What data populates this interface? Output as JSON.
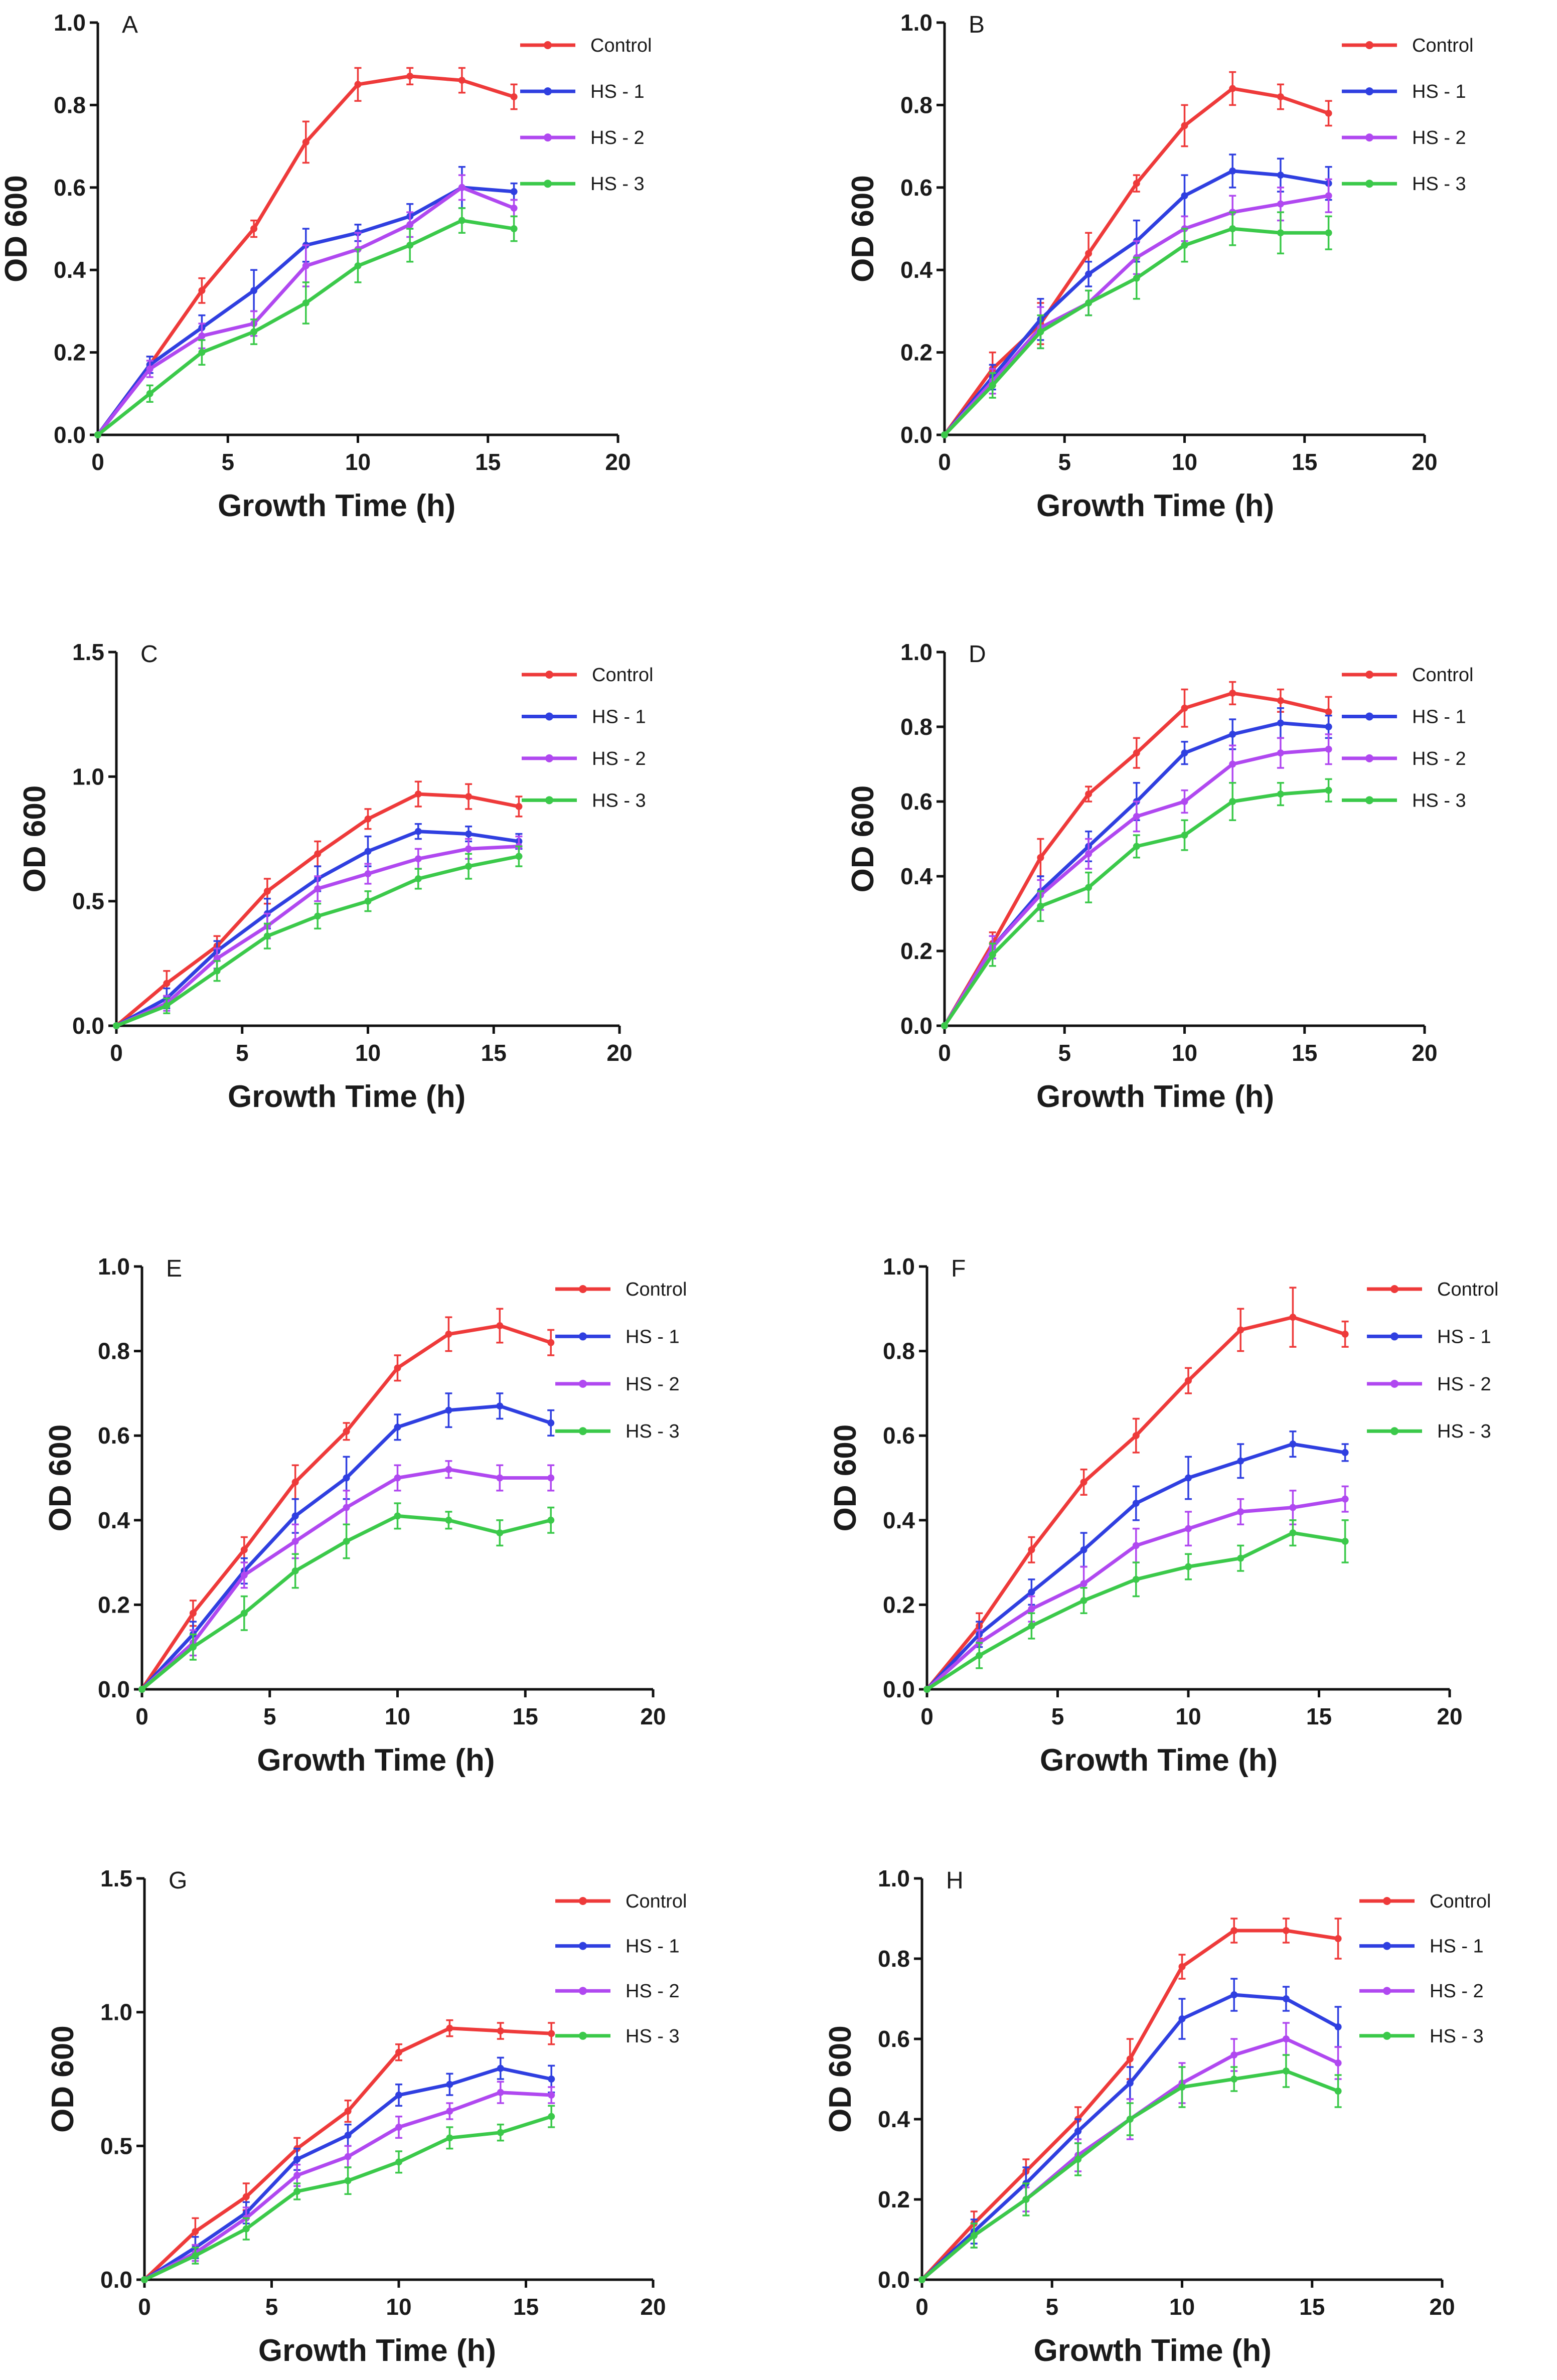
{
  "colors": {
    "Control": "#ee3a3a",
    "HS - 1": "#2f3fe0",
    "HS - 2": "#b048f0",
    "HS - 3": "#3bc94a"
  },
  "chart_data": [
    {
      "panel": "A",
      "type": "line",
      "xlabel": "Growth Time (h)",
      "ylabel": "OD 600",
      "xlim": [
        0,
        20
      ],
      "ylim": [
        0,
        1.0
      ],
      "xticks": [
        "0",
        "5",
        "10",
        "15",
        "20"
      ],
      "yticks": [
        "0.0",
        "0.2",
        "0.4",
        "0.6",
        "0.8",
        "1.0"
      ],
      "x": [
        0,
        2,
        4,
        6,
        8,
        10,
        12,
        14,
        16
      ],
      "series": [
        {
          "name": "Control",
          "values": [
            0,
            0.17,
            0.35,
            0.5,
            0.71,
            0.85,
            0.87,
            0.86,
            0.82
          ],
          "err": [
            0,
            0.02,
            0.03,
            0.02,
            0.05,
            0.04,
            0.02,
            0.03,
            0.03
          ]
        },
        {
          "name": "HS - 1",
          "values": [
            0,
            0.17,
            0.26,
            0.35,
            0.46,
            0.49,
            0.53,
            0.6,
            0.59
          ],
          "err": [
            0,
            0.02,
            0.03,
            0.05,
            0.04,
            0.02,
            0.03,
            0.05,
            0.02
          ]
        },
        {
          "name": "HS - 2",
          "values": [
            0,
            0.16,
            0.24,
            0.27,
            0.41,
            0.45,
            0.51,
            0.6,
            0.55
          ],
          "err": [
            0,
            0.02,
            0.03,
            0.03,
            0.05,
            0.04,
            0.03,
            0.03,
            0.02
          ]
        },
        {
          "name": "HS - 3",
          "values": [
            0,
            0.1,
            0.2,
            0.25,
            0.32,
            0.41,
            0.46,
            0.52,
            0.5
          ],
          "err": [
            0,
            0.02,
            0.03,
            0.03,
            0.05,
            0.04,
            0.04,
            0.03,
            0.03
          ]
        }
      ]
    },
    {
      "panel": "B",
      "type": "line",
      "xlabel": "Growth Time (h)",
      "ylabel": "OD 600",
      "xlim": [
        0,
        20
      ],
      "ylim": [
        0,
        1.0
      ],
      "xticks": [
        "0",
        "5",
        "10",
        "15",
        "20"
      ],
      "yticks": [
        "0.0",
        "0.2",
        "0.4",
        "0.6",
        "0.8",
        "1.0"
      ],
      "x": [
        0,
        2,
        4,
        6,
        8,
        10,
        12,
        14,
        16
      ],
      "series": [
        {
          "name": "Control",
          "values": [
            0,
            0.16,
            0.27,
            0.44,
            0.61,
            0.75,
            0.84,
            0.82,
            0.78
          ],
          "err": [
            0,
            0.04,
            0.05,
            0.05,
            0.02,
            0.05,
            0.04,
            0.03,
            0.03
          ]
        },
        {
          "name": "HS - 1",
          "values": [
            0,
            0.14,
            0.28,
            0.39,
            0.47,
            0.58,
            0.64,
            0.63,
            0.61
          ],
          "err": [
            0,
            0.03,
            0.05,
            0.03,
            0.05,
            0.05,
            0.04,
            0.04,
            0.04
          ]
        },
        {
          "name": "HS - 2",
          "values": [
            0,
            0.13,
            0.26,
            0.32,
            0.43,
            0.5,
            0.54,
            0.56,
            0.58
          ],
          "err": [
            0,
            0.03,
            0.05,
            0.03,
            0.04,
            0.03,
            0.04,
            0.04,
            0.04
          ]
        },
        {
          "name": "HS - 3",
          "values": [
            0,
            0.12,
            0.25,
            0.32,
            0.38,
            0.46,
            0.5,
            0.49,
            0.49
          ],
          "err": [
            0,
            0.03,
            0.04,
            0.03,
            0.05,
            0.04,
            0.04,
            0.05,
            0.04
          ]
        }
      ]
    },
    {
      "panel": "C",
      "type": "line",
      "xlabel": "Growth Time (h)",
      "ylabel": "OD 600",
      "xlim": [
        0,
        20
      ],
      "ylim": [
        0,
        1.5
      ],
      "xticks": [
        "0",
        "5",
        "10",
        "15",
        "20"
      ],
      "yticks": [
        "0.0",
        "0.5",
        "1.0",
        "1.5"
      ],
      "x": [
        0,
        2,
        4,
        6,
        8,
        10,
        12,
        14,
        16
      ],
      "series": [
        {
          "name": "Control",
          "values": [
            0,
            0.17,
            0.32,
            0.54,
            0.69,
            0.83,
            0.93,
            0.92,
            0.88
          ],
          "err": [
            0,
            0.05,
            0.04,
            0.05,
            0.05,
            0.04,
            0.05,
            0.05,
            0.04
          ]
        },
        {
          "name": "HS - 1",
          "values": [
            0,
            0.11,
            0.3,
            0.45,
            0.59,
            0.7,
            0.78,
            0.77,
            0.74
          ],
          "err": [
            0,
            0.04,
            0.04,
            0.06,
            0.05,
            0.06,
            0.03,
            0.03,
            0.03
          ]
        },
        {
          "name": "HS - 2",
          "values": [
            0,
            0.09,
            0.27,
            0.4,
            0.55,
            0.61,
            0.67,
            0.71,
            0.72
          ],
          "err": [
            0,
            0.03,
            0.04,
            0.05,
            0.05,
            0.04,
            0.04,
            0.04,
            0.04
          ]
        },
        {
          "name": "HS - 3",
          "values": [
            0,
            0.08,
            0.22,
            0.36,
            0.44,
            0.5,
            0.59,
            0.64,
            0.68
          ],
          "err": [
            0,
            0.03,
            0.04,
            0.05,
            0.05,
            0.04,
            0.04,
            0.05,
            0.04
          ]
        }
      ]
    },
    {
      "panel": "D",
      "type": "line",
      "xlabel": "Growth Time (h)",
      "ylabel": "OD 600",
      "xlim": [
        0,
        20
      ],
      "ylim": [
        0,
        1.0
      ],
      "xticks": [
        "0",
        "5",
        "10",
        "15",
        "20"
      ],
      "yticks": [
        "0.0",
        "0.2",
        "0.4",
        "0.6",
        "0.8",
        "1.0"
      ],
      "x": [
        0,
        2,
        4,
        6,
        8,
        10,
        12,
        14,
        16
      ],
      "series": [
        {
          "name": "Control",
          "values": [
            0,
            0.22,
            0.45,
            0.62,
            0.73,
            0.85,
            0.89,
            0.87,
            0.84
          ],
          "err": [
            0,
            0.03,
            0.05,
            0.02,
            0.04,
            0.05,
            0.03,
            0.03,
            0.04
          ]
        },
        {
          "name": "HS - 1",
          "values": [
            0,
            0.21,
            0.36,
            0.48,
            0.6,
            0.73,
            0.78,
            0.81,
            0.8
          ],
          "err": [
            0,
            0.03,
            0.04,
            0.04,
            0.05,
            0.03,
            0.04,
            0.04,
            0.03
          ]
        },
        {
          "name": "HS - 2",
          "values": [
            0,
            0.21,
            0.35,
            0.46,
            0.56,
            0.6,
            0.7,
            0.73,
            0.74
          ],
          "err": [
            0,
            0.03,
            0.04,
            0.04,
            0.04,
            0.03,
            0.05,
            0.04,
            0.04
          ]
        },
        {
          "name": "HS - 3",
          "values": [
            0,
            0.19,
            0.32,
            0.37,
            0.48,
            0.51,
            0.6,
            0.62,
            0.63
          ],
          "err": [
            0,
            0.03,
            0.04,
            0.04,
            0.03,
            0.04,
            0.05,
            0.03,
            0.03
          ]
        }
      ]
    },
    {
      "panel": "E",
      "type": "line",
      "xlabel": "Growth Time (h)",
      "ylabel": "OD 600",
      "xlim": [
        0,
        20
      ],
      "ylim": [
        0,
        1.0
      ],
      "xticks": [
        "0",
        "5",
        "10",
        "15",
        "20"
      ],
      "yticks": [
        "0.0",
        "0.2",
        "0.4",
        "0.6",
        "0.8",
        "1.0"
      ],
      "x": [
        0,
        2,
        4,
        6,
        8,
        10,
        12,
        14,
        16
      ],
      "series": [
        {
          "name": "Control",
          "values": [
            0,
            0.18,
            0.33,
            0.49,
            0.61,
            0.76,
            0.84,
            0.86,
            0.82
          ],
          "err": [
            0,
            0.03,
            0.03,
            0.04,
            0.02,
            0.03,
            0.04,
            0.04,
            0.03
          ]
        },
        {
          "name": "HS - 1",
          "values": [
            0,
            0.13,
            0.28,
            0.41,
            0.5,
            0.62,
            0.66,
            0.67,
            0.63
          ],
          "err": [
            0,
            0.03,
            0.03,
            0.04,
            0.05,
            0.03,
            0.04,
            0.03,
            0.03
          ]
        },
        {
          "name": "HS - 2",
          "values": [
            0,
            0.11,
            0.27,
            0.35,
            0.43,
            0.5,
            0.52,
            0.5,
            0.5
          ],
          "err": [
            0,
            0.03,
            0.03,
            0.04,
            0.04,
            0.03,
            0.02,
            0.03,
            0.03
          ]
        },
        {
          "name": "HS - 3",
          "values": [
            0,
            0.1,
            0.18,
            0.28,
            0.35,
            0.41,
            0.4,
            0.37,
            0.4
          ],
          "err": [
            0,
            0.03,
            0.04,
            0.04,
            0.04,
            0.03,
            0.02,
            0.03,
            0.03
          ]
        }
      ]
    },
    {
      "panel": "F",
      "type": "line",
      "xlabel": "Growth Time (h)",
      "ylabel": "OD 600",
      "xlim": [
        0,
        20
      ],
      "ylim": [
        0,
        1.0
      ],
      "xticks": [
        "0",
        "5",
        "10",
        "15",
        "20"
      ],
      "yticks": [
        "0.0",
        "0.2",
        "0.4",
        "0.6",
        "0.8",
        "1.0"
      ],
      "x": [
        0,
        2,
        4,
        6,
        8,
        10,
        12,
        14,
        16
      ],
      "series": [
        {
          "name": "Control",
          "values": [
            0,
            0.15,
            0.33,
            0.49,
            0.6,
            0.73,
            0.85,
            0.88,
            0.84
          ],
          "err": [
            0,
            0.03,
            0.03,
            0.03,
            0.04,
            0.03,
            0.05,
            0.07,
            0.03
          ]
        },
        {
          "name": "HS - 1",
          "values": [
            0,
            0.13,
            0.23,
            0.33,
            0.44,
            0.5,
            0.54,
            0.58,
            0.56
          ],
          "err": [
            0,
            0.03,
            0.03,
            0.04,
            0.04,
            0.05,
            0.04,
            0.03,
            0.02
          ]
        },
        {
          "name": "HS - 2",
          "values": [
            0,
            0.11,
            0.19,
            0.25,
            0.34,
            0.38,
            0.42,
            0.43,
            0.45
          ],
          "err": [
            0,
            0.03,
            0.03,
            0.04,
            0.04,
            0.04,
            0.03,
            0.04,
            0.03
          ]
        },
        {
          "name": "HS - 3",
          "values": [
            0,
            0.08,
            0.15,
            0.21,
            0.26,
            0.29,
            0.31,
            0.37,
            0.35
          ],
          "err": [
            0,
            0.03,
            0.03,
            0.03,
            0.04,
            0.03,
            0.03,
            0.03,
            0.05
          ]
        }
      ]
    },
    {
      "panel": "G",
      "type": "line",
      "xlabel": "Growth Time (h)",
      "ylabel": "OD 600",
      "xlim": [
        0,
        20
      ],
      "ylim": [
        0,
        1.5
      ],
      "xticks": [
        "0",
        "5",
        "10",
        "15",
        "20"
      ],
      "yticks": [
        "0.0",
        "0.5",
        "1.0",
        "1.5"
      ],
      "x": [
        0,
        2,
        4,
        6,
        8,
        10,
        12,
        14,
        16
      ],
      "series": [
        {
          "name": "Control",
          "values": [
            0,
            0.18,
            0.31,
            0.49,
            0.63,
            0.85,
            0.94,
            0.93,
            0.92
          ],
          "err": [
            0,
            0.05,
            0.05,
            0.04,
            0.04,
            0.03,
            0.03,
            0.03,
            0.04
          ]
        },
        {
          "name": "HS - 1",
          "values": [
            0,
            0.12,
            0.25,
            0.45,
            0.54,
            0.69,
            0.73,
            0.79,
            0.75
          ],
          "err": [
            0,
            0.04,
            0.04,
            0.04,
            0.04,
            0.04,
            0.04,
            0.04,
            0.05
          ]
        },
        {
          "name": "HS - 2",
          "values": [
            0,
            0.1,
            0.23,
            0.39,
            0.46,
            0.57,
            0.63,
            0.7,
            0.69
          ],
          "err": [
            0,
            0.03,
            0.04,
            0.04,
            0.04,
            0.04,
            0.03,
            0.04,
            0.03
          ]
        },
        {
          "name": "HS - 3",
          "values": [
            0,
            0.09,
            0.19,
            0.33,
            0.37,
            0.44,
            0.53,
            0.55,
            0.61
          ],
          "err": [
            0,
            0.03,
            0.04,
            0.03,
            0.05,
            0.04,
            0.04,
            0.03,
            0.04
          ]
        }
      ]
    },
    {
      "panel": "H",
      "type": "line",
      "xlabel": "Growth Time (h)",
      "ylabel": "OD 600",
      "xlim": [
        0,
        20
      ],
      "ylim": [
        0,
        1.0
      ],
      "xticks": [
        "0",
        "5",
        "10",
        "15",
        "20"
      ],
      "yticks": [
        "0.0",
        "0.2",
        "0.4",
        "0.6",
        "0.8",
        "1.0"
      ],
      "x": [
        0,
        2,
        4,
        6,
        8,
        10,
        12,
        14,
        16
      ],
      "series": [
        {
          "name": "Control",
          "values": [
            0,
            0.14,
            0.27,
            0.4,
            0.55,
            0.78,
            0.87,
            0.87,
            0.85
          ],
          "err": [
            0,
            0.03,
            0.03,
            0.03,
            0.05,
            0.03,
            0.03,
            0.03,
            0.05
          ]
        },
        {
          "name": "HS - 1",
          "values": [
            0,
            0.12,
            0.24,
            0.37,
            0.49,
            0.65,
            0.71,
            0.7,
            0.63
          ],
          "err": [
            0,
            0.03,
            0.04,
            0.03,
            0.04,
            0.05,
            0.04,
            0.03,
            0.05
          ]
        },
        {
          "name": "HS - 2",
          "values": [
            0,
            0.11,
            0.2,
            0.31,
            0.4,
            0.49,
            0.56,
            0.6,
            0.54
          ],
          "err": [
            0,
            0.03,
            0.03,
            0.04,
            0.05,
            0.05,
            0.04,
            0.04,
            0.04
          ]
        },
        {
          "name": "HS - 3",
          "values": [
            0,
            0.11,
            0.2,
            0.3,
            0.4,
            0.48,
            0.5,
            0.52,
            0.47
          ],
          "err": [
            0,
            0.03,
            0.04,
            0.04,
            0.04,
            0.05,
            0.03,
            0.04,
            0.04
          ]
        }
      ]
    }
  ]
}
